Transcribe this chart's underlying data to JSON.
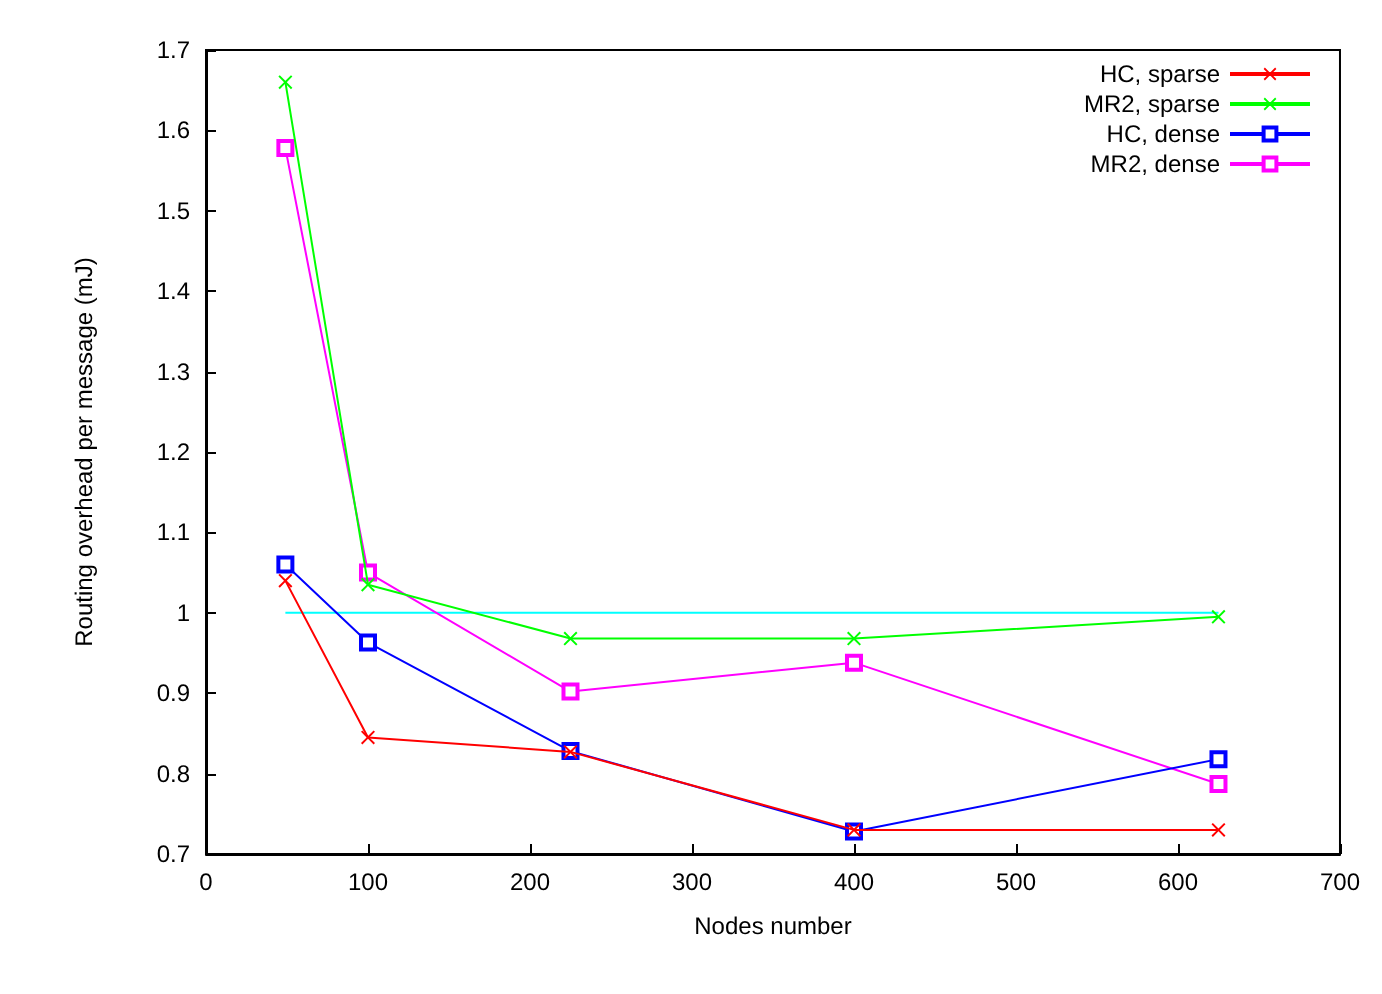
{
  "chart_data": {
    "type": "line",
    "xlabel": "Nodes number",
    "ylabel": "Routing overhead per message (mJ)",
    "xlim": [
      0,
      700
    ],
    "xticks": [
      0,
      100,
      200,
      300,
      400,
      500,
      600,
      700
    ],
    "ylim": [
      0.7,
      1.7
    ],
    "yticks": [
      0.7,
      0.8,
      0.9,
      1,
      1.1,
      1.2,
      1.3,
      1.4,
      1.5,
      1.6,
      1.7
    ],
    "grid": false,
    "legend": "top right",
    "x": [
      49,
      100,
      225,
      400,
      625
    ],
    "series": [
      {
        "name": "HC, sparse",
        "color": "#ff0000",
        "marker": "cross",
        "values": [
          1.04,
          0.845,
          0.827,
          0.73,
          0.73
        ]
      },
      {
        "name": "MR2, sparse",
        "color": "#00ff00",
        "marker": "cross",
        "values": [
          1.66,
          1.035,
          0.968,
          0.968,
          0.995
        ]
      },
      {
        "name": "HC, dense",
        "color": "#0000ff",
        "marker": "square",
        "values": [
          1.06,
          0.963,
          0.828,
          0.728,
          0.818
        ]
      },
      {
        "name": "MR2, dense",
        "color": "#ff00ff",
        "marker": "square",
        "values": [
          1.578,
          1.05,
          0.902,
          0.938,
          0.787
        ]
      },
      {
        "color": "#00ffff",
        "marker": "none",
        "x": [
          49,
          625
        ],
        "values": [
          1,
          1
        ]
      }
    ]
  }
}
